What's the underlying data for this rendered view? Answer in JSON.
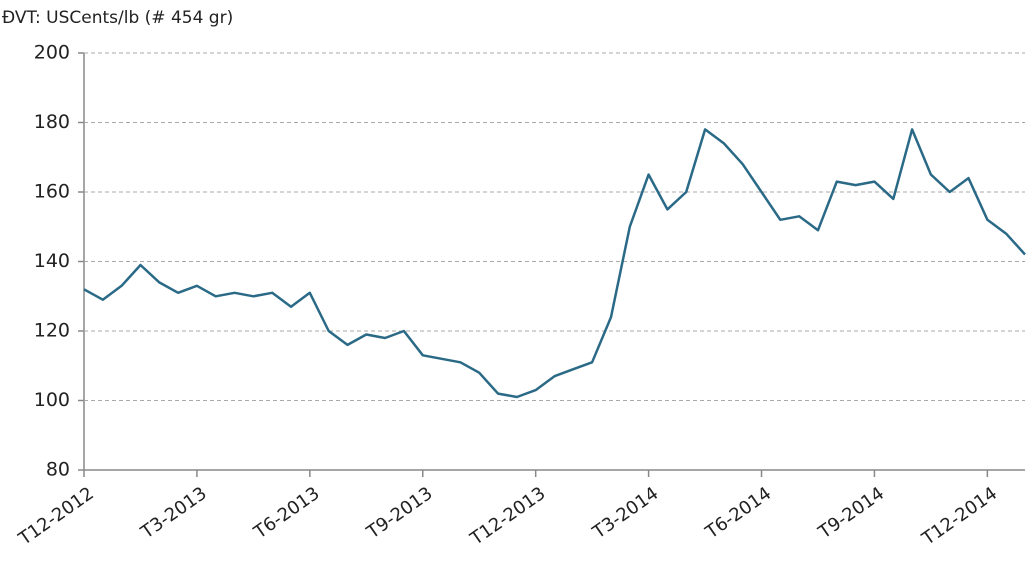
{
  "chart_data": {
    "type": "line",
    "title": "ĐVT: USCents/lb (# 454 gr)",
    "categories": [
      "T12-2012",
      null,
      null,
      null,
      null,
      null,
      "T3-2013",
      null,
      null,
      null,
      null,
      null,
      "T6-2013",
      null,
      null,
      null,
      null,
      null,
      "T9-2013",
      null,
      null,
      null,
      null,
      null,
      "T12-2013",
      null,
      null,
      null,
      null,
      null,
      "T3-2014",
      null,
      null,
      null,
      null,
      null,
      "T6-2014",
      null,
      null,
      null,
      null,
      null,
      "T9-2014",
      null,
      null,
      null,
      null,
      null,
      "T12-2014",
      null,
      null
    ],
    "series": [
      {
        "color": "#2b6a87",
        "values": [
          132,
          129,
          133,
          139,
          134,
          131,
          133,
          130,
          131,
          130,
          131,
          127,
          131,
          120,
          116,
          119,
          118,
          120,
          113,
          112,
          111,
          108,
          102,
          101,
          103,
          107,
          109,
          111,
          124,
          150,
          165,
          155,
          160,
          178,
          174,
          168,
          160,
          152,
          153,
          149,
          163,
          162,
          163,
          158,
          178,
          165,
          160,
          164,
          152,
          148,
          142
        ]
      }
    ],
    "ylim": [
      80,
      200
    ],
    "yticks": [
      80,
      100,
      120,
      140,
      160,
      180,
      200
    ],
    "grid": true
  }
}
